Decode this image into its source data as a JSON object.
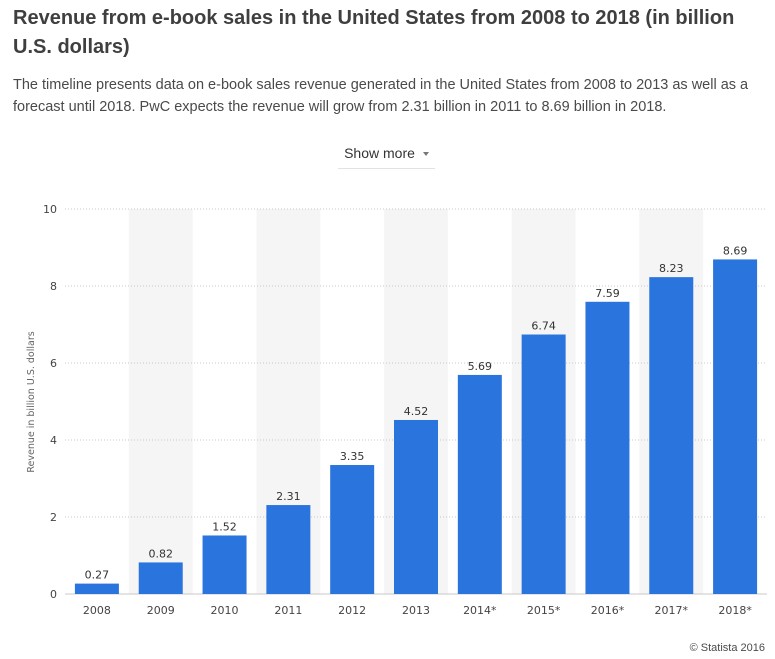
{
  "header": {
    "title": "Revenue from e-book sales in the United States from 2008 to 2018 (in billion U.S. dollars)",
    "description": "The timeline presents data on e-book sales revenue generated in the United States from 2008 to 2013 as well as a forecast until 2018. PwC expects the revenue will grow from 2.31 billion in 2011 to 8.69 billion in 2018.",
    "show_more_label": "Show more"
  },
  "footer": {
    "credit": "© Statista 2016"
  },
  "colors": {
    "bar": "#2a74dd",
    "band": "#f5f5f5",
    "gridline": "#c8c8c8"
  },
  "icons": {
    "show_more": "chevron-down-icon"
  },
  "chart_data": {
    "type": "bar",
    "title": "",
    "xlabel": "",
    "ylabel": "Revenue in billion U.S. dollars",
    "categories": [
      "2008",
      "2009",
      "2010",
      "2011",
      "2012",
      "2013",
      "2014*",
      "2015*",
      "2016*",
      "2017*",
      "2018*"
    ],
    "values": [
      0.27,
      0.82,
      1.52,
      2.31,
      3.35,
      4.52,
      5.69,
      6.74,
      7.59,
      8.23,
      8.69
    ],
    "value_labels": [
      "0.27",
      "0.82",
      "1.52",
      "2.31",
      "3.35",
      "4.52",
      "5.69",
      "6.74",
      "7.59",
      "8.23",
      "8.69"
    ],
    "ylim": [
      0,
      10
    ],
    "yticks": [
      "0",
      "2",
      "4",
      "6",
      "8",
      "10"
    ],
    "grid": true,
    "legend": "none"
  }
}
